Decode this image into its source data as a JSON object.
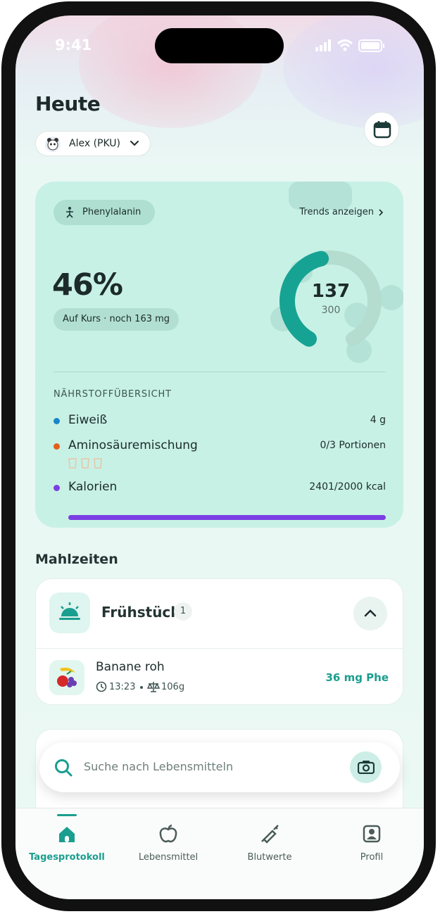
{
  "status_bar": {
    "time": "9:41"
  },
  "header": {
    "title": "Heute",
    "profile": "Alex (PKU)"
  },
  "summary_card": {
    "chip": "Phenylalanin",
    "trends_link": "Trends anzeigen",
    "percent": "46%",
    "status": "Auf Kurs · noch 163 mg",
    "gauge": {
      "value": 137,
      "max": 300
    },
    "section_title": "NÄHRSTOFFÜBERSICHT",
    "nutrients": [
      {
        "name": "Eiweiß",
        "amount": "4 g",
        "color": "#1a86c7"
      },
      {
        "name": "Aminosäuremischung",
        "amount": "0/3 Portionen",
        "color": "#e0601c"
      },
      {
        "name": "Kalorien",
        "amount": "2401/2000 kcal",
        "color": "#7b3fe4"
      }
    ]
  },
  "meals": {
    "title": "Mahlzeiten",
    "groups": [
      {
        "name": "Frühstück",
        "count": 1,
        "items": [
          {
            "name": "Banane roh",
            "time": "13:23",
            "weight": "106g",
            "phe": "36 mg Phe"
          }
        ]
      }
    ]
  },
  "search": {
    "placeholder": "Suche nach Lebensmitteln"
  },
  "tab_bar": {
    "tabs": [
      "Tagesprotokoll",
      "Lebensmittel",
      "Blutwerte",
      "Profil"
    ],
    "active": 0
  }
}
